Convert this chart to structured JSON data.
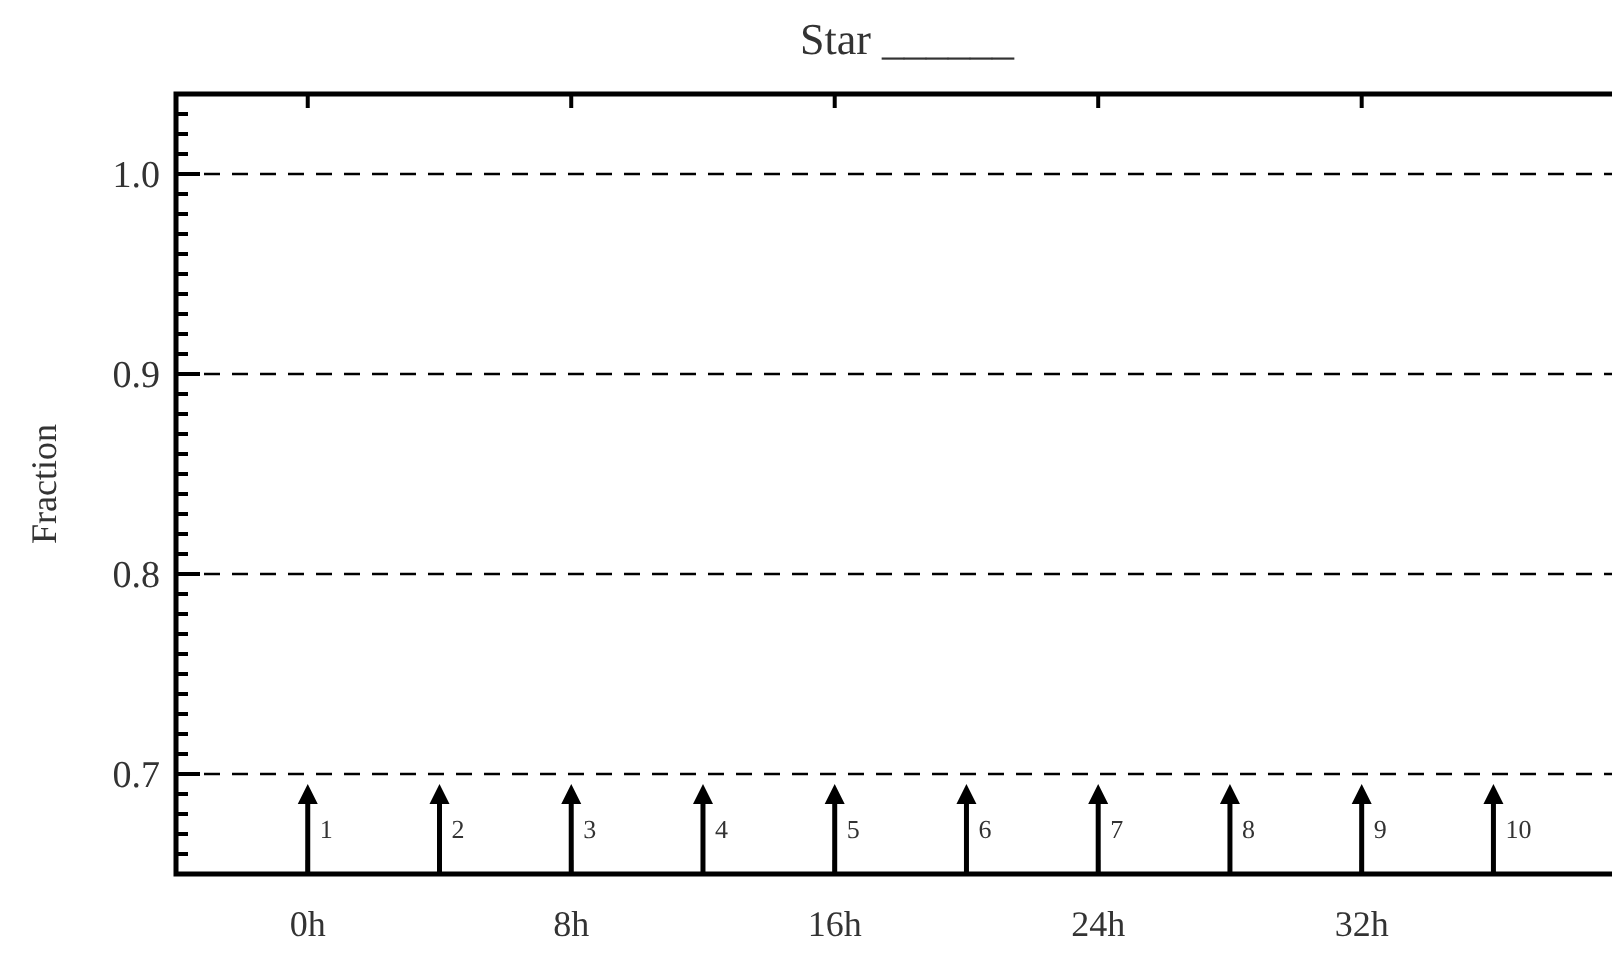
{
  "chart_data": {
    "type": "line",
    "title": "Star ______",
    "ylabel": "Fraction",
    "xlim": [
      -4,
      39.6
    ],
    "ylim": [
      0.65,
      1.04
    ],
    "xticks": [
      {
        "value": 0,
        "label": "0h"
      },
      {
        "value": 8,
        "label": "8h"
      },
      {
        "value": 16,
        "label": "16h"
      },
      {
        "value": 24,
        "label": "24h"
      },
      {
        "value": 32,
        "label": "32h"
      }
    ],
    "yticks": [
      0.7,
      0.8,
      0.9,
      {
        "value": 1,
        "label": "1.0"
      },
      {
        "value": 0.66,
        "label": null
      },
      {
        "value": 0.67,
        "label": null
      },
      {
        "value": 0.68,
        "label": null
      },
      {
        "value": 0.69,
        "label": null
      },
      {
        "value": 0.71,
        "label": null
      },
      {
        "value": 0.72,
        "label": null
      },
      {
        "value": 0.73,
        "label": null
      },
      {
        "value": 0.74,
        "label": null
      },
      {
        "value": 0.75,
        "label": null
      },
      {
        "value": 0.76,
        "label": null
      },
      {
        "value": 0.77,
        "label": null
      },
      {
        "value": 0.78,
        "label": null
      },
      {
        "value": 0.79,
        "label": null
      },
      {
        "value": 0.81,
        "label": null
      },
      {
        "value": 0.82,
        "label": null
      },
      {
        "value": 0.83,
        "label": null
      },
      {
        "value": 0.84,
        "label": null
      },
      {
        "value": 0.85,
        "label": null
      },
      {
        "value": 0.86,
        "label": null
      },
      {
        "value": 0.87,
        "label": null
      },
      {
        "value": 0.88,
        "label": null
      },
      {
        "value": 0.89,
        "label": null
      },
      {
        "value": 0.91,
        "label": null
      },
      {
        "value": 0.92,
        "label": null
      },
      {
        "value": 0.93,
        "label": null
      },
      {
        "value": 0.94,
        "label": null
      },
      {
        "value": 0.95,
        "label": null
      },
      {
        "value": 0.96,
        "label": null
      },
      {
        "value": 0.97,
        "label": null
      },
      {
        "value": 0.98,
        "label": null
      },
      {
        "value": 0.99,
        "label": null
      },
      {
        "value": 1.01,
        "label": null
      },
      {
        "value": 1.02,
        "label": null
      },
      {
        "value": 1.03,
        "label": null
      },
      {
        "value": 1.04,
        "label": null
      }
    ],
    "ref_lines": [
      {
        "axis": "y",
        "value": 0.7,
        "line_style": "dashed"
      },
      {
        "axis": "y",
        "value": 0.8,
        "line_style": "dashed"
      },
      {
        "axis": "y",
        "value": 0.9,
        "line_style": "dashed"
      },
      {
        "axis": "y",
        "value": 1,
        "line_style": "dashed"
      }
    ],
    "marker": "triangle",
    "series": [
      {
        "type": "lollipop",
        "color": "#000000",
        "x": [
          0,
          4,
          8,
          12,
          16,
          20,
          24,
          28,
          32,
          36
        ],
        "values": [
          0.69,
          0.69,
          0.69,
          0.69,
          0.69,
          0.69,
          0.69,
          0.69,
          0.69,
          0.69
        ]
      }
    ],
    "annotations": [
      {
        "text": "1",
        "x": 0,
        "y": 0.69
      },
      {
        "text": "2",
        "x": 4,
        "y": 0.69
      },
      {
        "text": "3",
        "x": 8,
        "y": 0.69
      },
      {
        "text": "4",
        "x": 12,
        "y": 0.69
      },
      {
        "text": "5",
        "x": 16,
        "y": 0.69
      },
      {
        "text": "6",
        "x": 20,
        "y": 0.69
      },
      {
        "text": "7",
        "x": 24,
        "y": 0.69
      },
      {
        "text": "8",
        "x": 28,
        "y": 0.69
      },
      {
        "text": "9",
        "x": 32,
        "y": 0.69
      },
      {
        "text": "10",
        "x": 36,
        "y": 0.69
      }
    ]
  }
}
